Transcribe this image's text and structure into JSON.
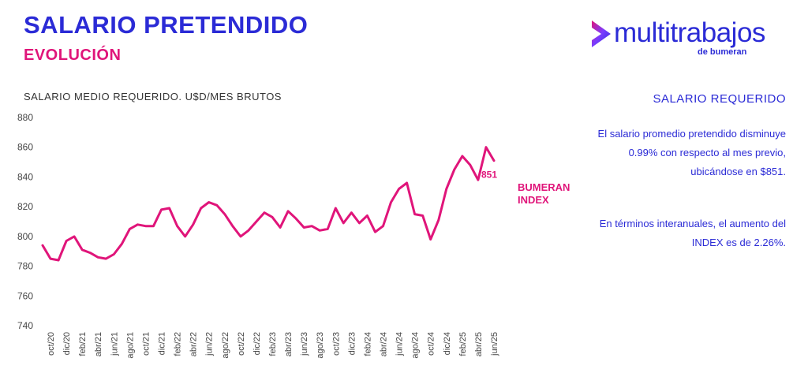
{
  "header": {
    "title": "SALARIO PRETENDIDO",
    "subtitle": "EVOLUCIÓN"
  },
  "logo": {
    "word": "multitrabajos",
    "sub": "de bumeran",
    "icon": "chevron-mark-icon",
    "colors": {
      "primary": "#2b2bd6",
      "accent": "#e0157a",
      "secondary": "#7a3cff"
    }
  },
  "side_panel": {
    "heading": "SALARIO REQUERIDO",
    "paragraph_1": "El salario promedio pretendido disminuye 0.99% con respecto al mes previo, ubicándose en $851.",
    "paragraph_2": "En términos interanuales, el aumento del INDEX es de 2.26%."
  },
  "chart_data": {
    "type": "line",
    "title": "SALARIO MEDIO REQUERIDO. U$D/MES BRUTOS",
    "xlabel": "",
    "ylabel": "",
    "ylim": [
      740,
      880
    ],
    "yticks": [
      740,
      760,
      780,
      800,
      820,
      840,
      860,
      880
    ],
    "grid": false,
    "legend": "right",
    "color": "#e0157a",
    "tick_labels": [
      "oct/20",
      "dic/20",
      "feb/21",
      "abr/21",
      "jun/21",
      "ago/21",
      "oct/21",
      "dic/21",
      "feb/22",
      "abr/22",
      "jun/22",
      "ago/22",
      "oct/22",
      "dic/22",
      "feb/23",
      "abr/23",
      "jun/23",
      "ago/23",
      "oct/23",
      "dic/23",
      "feb/24",
      "abr/24",
      "jun/24",
      "ago/24",
      "oct/24",
      "dic/24",
      "feb/25",
      "abr/25",
      "jun/25"
    ],
    "series": [
      {
        "name": "BUMERAN INDEX",
        "x": [
          "sep/20",
          "oct/20",
          "nov/20",
          "dic/20",
          "ene/21",
          "feb/21",
          "mar/21",
          "abr/21",
          "may/21",
          "jun/21",
          "jul/21",
          "ago/21",
          "sep/21",
          "oct/21",
          "nov/21",
          "dic/21",
          "ene/22",
          "feb/22",
          "mar/22",
          "abr/22",
          "may/22",
          "jun/22",
          "jul/22",
          "ago/22",
          "sep/22",
          "oct/22",
          "nov/22",
          "dic/22",
          "ene/23",
          "feb/23",
          "mar/23",
          "abr/23",
          "may/23",
          "jun/23",
          "jul/23",
          "ago/23",
          "sep/23",
          "oct/23",
          "nov/23",
          "dic/23",
          "ene/24",
          "feb/24",
          "mar/24",
          "abr/24",
          "may/24",
          "jun/24",
          "jul/24",
          "ago/24",
          "sep/24",
          "oct/24",
          "nov/24",
          "dic/24",
          "ene/25",
          "feb/25",
          "mar/25",
          "abr/25",
          "may/25",
          "jun/25"
        ],
        "values": [
          794,
          785,
          784,
          797,
          800,
          791,
          789,
          786,
          785,
          788,
          795,
          805,
          808,
          807,
          807,
          818,
          819,
          807,
          800,
          808,
          819,
          823,
          821,
          815,
          807,
          800,
          804,
          810,
          816,
          813,
          806,
          817,
          812,
          806,
          807,
          804,
          805,
          819,
          809,
          816,
          809,
          814,
          803,
          807,
          823,
          832,
          836,
          815,
          814,
          798,
          811,
          832,
          845,
          854,
          848,
          838,
          860,
          851
        ],
        "end_label": "851"
      }
    ]
  }
}
